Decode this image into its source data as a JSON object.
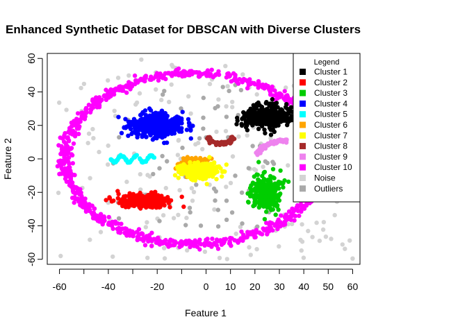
{
  "chart_data": {
    "type": "scatter",
    "title": "Enhanced Synthetic Dataset for DBSCAN with Diverse Clusters",
    "xlabel": "Feature 1",
    "ylabel": "Feature 2",
    "xlim": [
      -65,
      63
    ],
    "ylim": [
      -63,
      63
    ],
    "xticks": [
      -60,
      -40,
      -20,
      0,
      10,
      20,
      30,
      40,
      50,
      60
    ],
    "xticks_unlabeled": [
      -50,
      -30,
      -10
    ],
    "yticks": [
      -60,
      -40,
      -20,
      0,
      20,
      40,
      60
    ],
    "legend": {
      "title": "Legend",
      "position": "top-right",
      "entries": [
        {
          "name": "Cluster 1",
          "color": "#000000"
        },
        {
          "name": "Cluster 2",
          "color": "#ff0000"
        },
        {
          "name": "Cluster 3",
          "color": "#00cd00"
        },
        {
          "name": "Cluster 4",
          "color": "#0000ff"
        },
        {
          "name": "Cluster 5",
          "color": "#00ffff"
        },
        {
          "name": "Cluster 6",
          "color": "#ffa500"
        },
        {
          "name": "Cluster 7",
          "color": "#ffff00"
        },
        {
          "name": "Cluster 8",
          "color": "#a52a2a"
        },
        {
          "name": "Cluster 9",
          "color": "#ee82ee"
        },
        {
          "name": "Cluster 10",
          "color": "#ff00ff"
        },
        {
          "name": "Noise",
          "color": "#d3d3d3"
        },
        {
          "name": "Outliers",
          "color": "#a9a9a9"
        }
      ]
    },
    "series": [
      {
        "name": "Cluster 1",
        "color": "#000000",
        "shape": "blob",
        "center": [
          25,
          25
        ],
        "spread": [
          5,
          3.5
        ],
        "count": 380
      },
      {
        "name": "Cluster 2",
        "color": "#ff0000",
        "shape": "blob",
        "center": [
          -25,
          -25
        ],
        "spread": [
          5.5,
          2
        ],
        "count": 260
      },
      {
        "name": "Cluster 3",
        "color": "#00cd00",
        "shape": "blob",
        "center": [
          25,
          -20
        ],
        "spread": [
          3,
          5
        ],
        "count": 300
      },
      {
        "name": "Cluster 4",
        "color": "#0000ff",
        "shape": "blob",
        "center": [
          -20,
          20
        ],
        "spread": [
          5.5,
          3.5
        ],
        "count": 420
      },
      {
        "name": "Cluster 5",
        "color": "#00ffff",
        "shape": "sine",
        "x_range": [
          -39,
          -21
        ],
        "amplitude": 2,
        "period": 6,
        "y_center": 0,
        "count": 80
      },
      {
        "name": "Cluster 6",
        "color": "#ffa500",
        "shape": "blob",
        "center": [
          -5,
          -3
        ],
        "spread": [
          3.5,
          2.5
        ],
        "count": 150
      },
      {
        "name": "Cluster 7",
        "color": "#ffff00",
        "shape": "blob",
        "center": [
          -2,
          -7
        ],
        "spread": [
          4,
          2.5
        ],
        "count": 220
      },
      {
        "name": "Cluster 8",
        "color": "#a52a2a",
        "shape": "arc",
        "center": [
          6,
          15
        ],
        "radius": 6,
        "angle_range": [
          200,
          340
        ],
        "count": 60
      },
      {
        "name": "Cluster 9",
        "color": "#ee82ee",
        "shape": "arc",
        "center": [
          33,
          -2
        ],
        "radius": 13,
        "angle_range": [
          90,
          160
        ],
        "count": 80
      },
      {
        "name": "Cluster 10",
        "color": "#ff00ff",
        "shape": "ring",
        "center": [
          -5,
          0
        ],
        "rx": 53,
        "ry": 51,
        "thickness": 1.3,
        "count": 900
      },
      {
        "name": "Noise",
        "color": "#d3d3d3",
        "shape": "uniform",
        "x_range": [
          -62,
          60
        ],
        "y_range": [
          -60,
          60
        ],
        "count": 190
      },
      {
        "name": "Outliers",
        "color": "#a9a9a9",
        "shape": "uniform",
        "x_range": [
          -38,
          28
        ],
        "y_range": [
          -42,
          45
        ],
        "count": 75
      }
    ]
  }
}
